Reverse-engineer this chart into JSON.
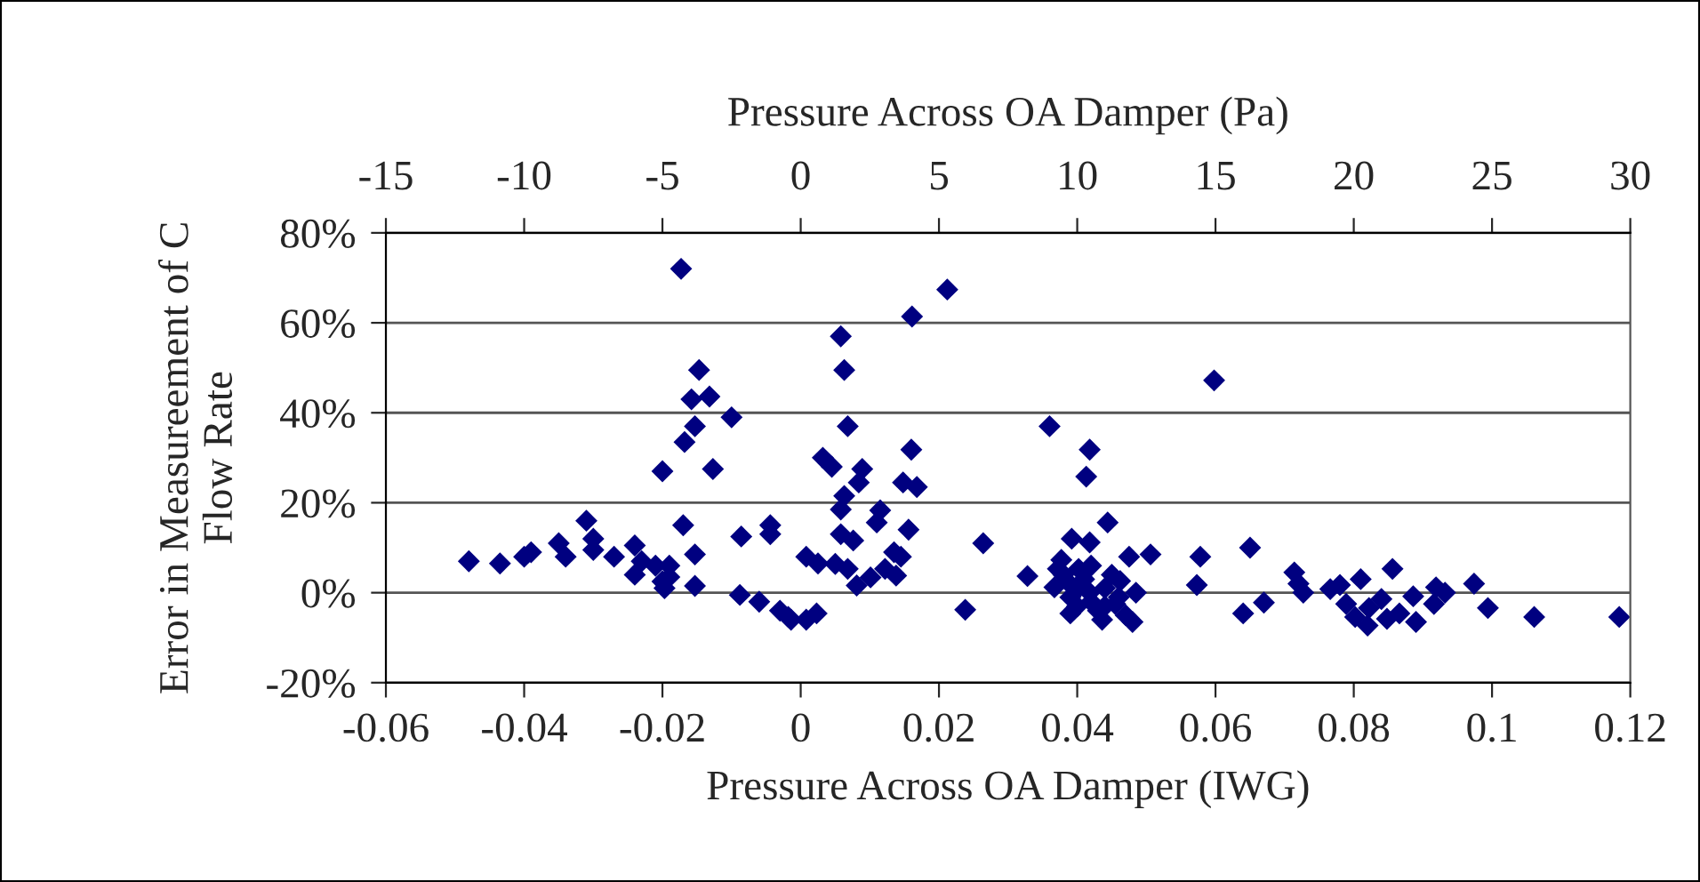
{
  "chart_data": {
    "type": "scatter",
    "xlabel": "Pressure Across OA Damper (IWG)",
    "x2label": "Pressure Across OA Damper (Pa)",
    "ylabel": "Error in Measureement of C\nFlow Rate",
    "xlim": [
      -0.06,
      0.12
    ],
    "xticks": [
      -0.06,
      -0.04,
      -0.02,
      0,
      0.02,
      0.04,
      0.06,
      0.08,
      0.1,
      0.12
    ],
    "x2lim": [
      -15,
      30
    ],
    "x2ticks": [
      -15,
      -10,
      -5,
      0,
      5,
      10,
      15,
      20,
      25,
      30
    ],
    "ylim": [
      -20,
      80
    ],
    "yticks": [
      {
        "value": -20,
        "label": "-20%"
      },
      {
        "value": 0,
        "label": "0%"
      },
      {
        "value": 20,
        "label": "20%"
      },
      {
        "value": 40,
        "label": "40%"
      },
      {
        "value": 60,
        "label": "60%"
      },
      {
        "value": 80,
        "label": "80%"
      }
    ],
    "grid": "y",
    "marker": "diamond",
    "series": [
      {
        "color": "#000080",
        "x": [
          -0.048,
          -0.0435,
          -0.04,
          -0.039,
          -0.035,
          -0.034,
          -0.031,
          -0.03,
          -0.03,
          -0.027,
          -0.024,
          -0.023,
          -0.024,
          -0.021,
          -0.02,
          -0.019,
          -0.0197,
          -0.019,
          -0.0173,
          -0.0147,
          -0.0158,
          -0.0132,
          -0.0153,
          -0.0168,
          -0.01,
          -0.02,
          -0.0127,
          -0.017,
          -0.0153,
          -0.0153,
          -0.0088,
          -0.0086,
          -0.006,
          -0.0044,
          -0.0044,
          -0.003,
          -0.0014,
          -0.0018,
          0.0008,
          0.0023,
          0.0008,
          0.0025,
          0.0058,
          0.0063,
          0.0068,
          0.0032,
          0.0045,
          0.0089,
          0.0084,
          0.0063,
          0.0058,
          0.0115,
          0.011,
          0.0058,
          0.0076,
          0.005,
          0.0068,
          0.0081,
          0.0101,
          0.0122,
          0.0138,
          0.0135,
          0.0145,
          0.0156,
          0.0161,
          0.0212,
          0.016,
          0.0148,
          0.0168,
          0.0264,
          0.0238,
          0.0328,
          0.036,
          0.0418,
          0.0413,
          0.0444,
          0.0392,
          0.0418,
          0.0377,
          0.0385,
          0.0403,
          0.0418,
          0.039,
          0.0436,
          0.0475,
          0.0506,
          0.0462,
          0.0485,
          0.048,
          0.0455,
          0.0367,
          0.0372,
          0.0402,
          0.0578,
          0.0573,
          0.0598,
          0.038,
          0.039,
          0.04,
          0.041,
          0.042,
          0.043,
          0.044,
          0.045,
          0.046,
          0.047,
          0.044,
          0.042,
          0.065,
          0.064,
          0.067,
          0.0714,
          0.072,
          0.0727,
          0.0766,
          0.078,
          0.081,
          0.0789,
          0.0802,
          0.082,
          0.0822,
          0.084,
          0.0848,
          0.0856,
          0.0866,
          0.0886,
          0.089,
          0.0919,
          0.0932,
          0.0916,
          0.0974,
          0.0994,
          0.1061,
          0.1184
        ],
        "values": [
          7,
          6.5,
          8,
          9,
          11,
          8,
          16,
          12,
          9.5,
          8,
          10.5,
          7,
          4,
          6,
          2.5,
          6,
          1,
          3.5,
          72,
          49.5,
          43,
          43.6,
          37,
          33.5,
          39,
          27,
          27.5,
          15,
          8.5,
          1.5,
          -0.5,
          12.5,
          -2,
          15,
          13,
          -4,
          -6,
          -5.4,
          -6,
          -4.6,
          8,
          6.5,
          57,
          49.5,
          37,
          30,
          28,
          27.5,
          24.5,
          21.5,
          18.5,
          18.3,
          15.6,
          13,
          11.6,
          6.4,
          5.3,
          1.6,
          3.4,
          5.3,
          3.8,
          9,
          8,
          14,
          61.4,
          67.4,
          31.8,
          24.5,
          23.5,
          11,
          -3.8,
          3.7,
          37,
          31.8,
          25.8,
          15.6,
          12,
          11.2,
          7.3,
          2.6,
          1.2,
          0,
          -4.6,
          -6,
          8,
          8.5,
          2.6,
          0,
          -6.5,
          -2.5,
          1.2,
          5.3,
          5.3,
          8,
          1.7,
          47.2,
          4,
          -1,
          -3,
          3,
          -2,
          -4,
          1,
          4,
          -1,
          -5,
          -3,
          6,
          10,
          -4.6,
          -2.2,
          4.5,
          2,
          0,
          0.8,
          1.7,
          3,
          -2.5,
          -5.4,
          -7.3,
          -3.4,
          -1.4,
          -5.8,
          5.3,
          -4.6,
          -0.8,
          -6.5,
          1.2,
          0,
          -2.5,
          2,
          -3.4,
          -5.4,
          -5.4
        ]
      }
    ]
  }
}
